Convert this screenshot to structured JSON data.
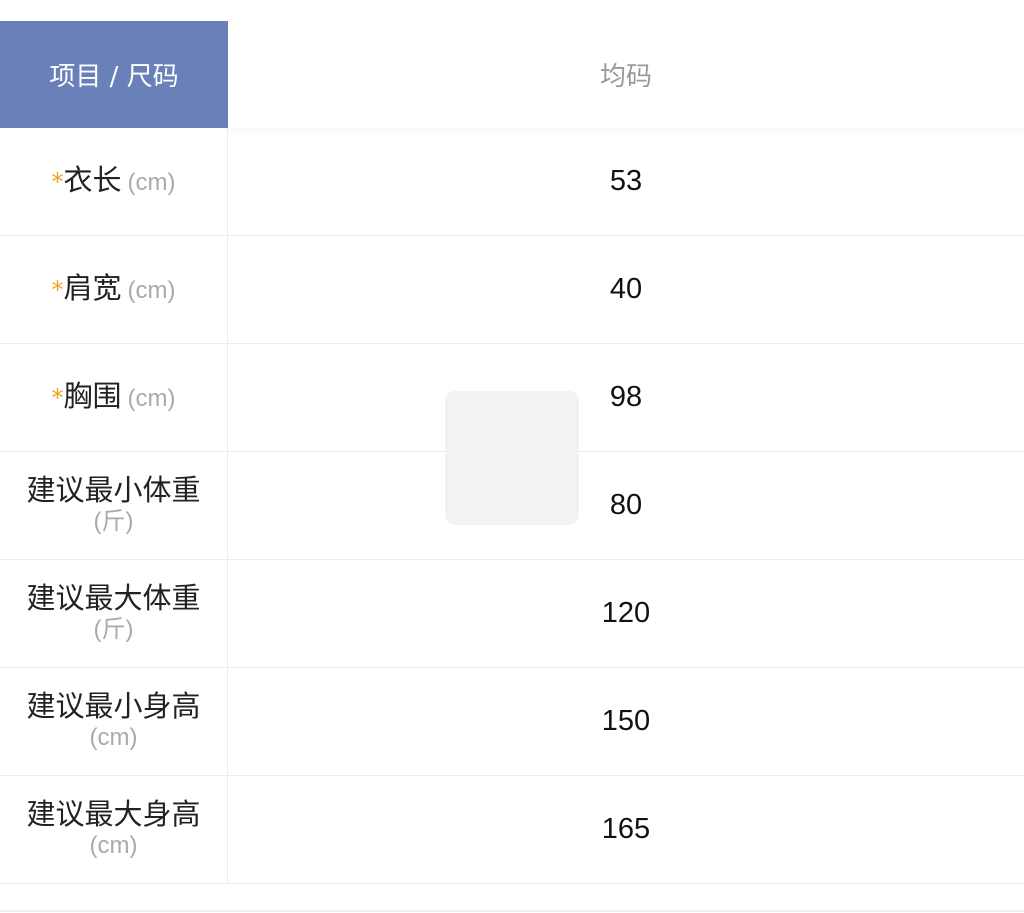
{
  "header": {
    "label": "项目 / 尺码",
    "size": "均码"
  },
  "colors": {
    "header_bg": "#6a80b8",
    "required_star": "#f0a020"
  },
  "rows": [
    {
      "required": "*",
      "label": "衣长",
      "unit": "(cm)",
      "value": "53"
    },
    {
      "required": "*",
      "label": "肩宽",
      "unit": "(cm)",
      "value": "40"
    },
    {
      "required": "*",
      "label": "胸围",
      "unit": "(cm)",
      "value": "98"
    },
    {
      "label": "建议最小体重",
      "unit": "(斤)",
      "value": "80"
    },
    {
      "label": "建议最大体重",
      "unit": "(斤)",
      "value": "120"
    },
    {
      "label": "建议最小身高",
      "unit": "(cm)",
      "value": "150"
    },
    {
      "label": "建议最大身高",
      "unit": "(cm)",
      "value": "165"
    }
  ]
}
